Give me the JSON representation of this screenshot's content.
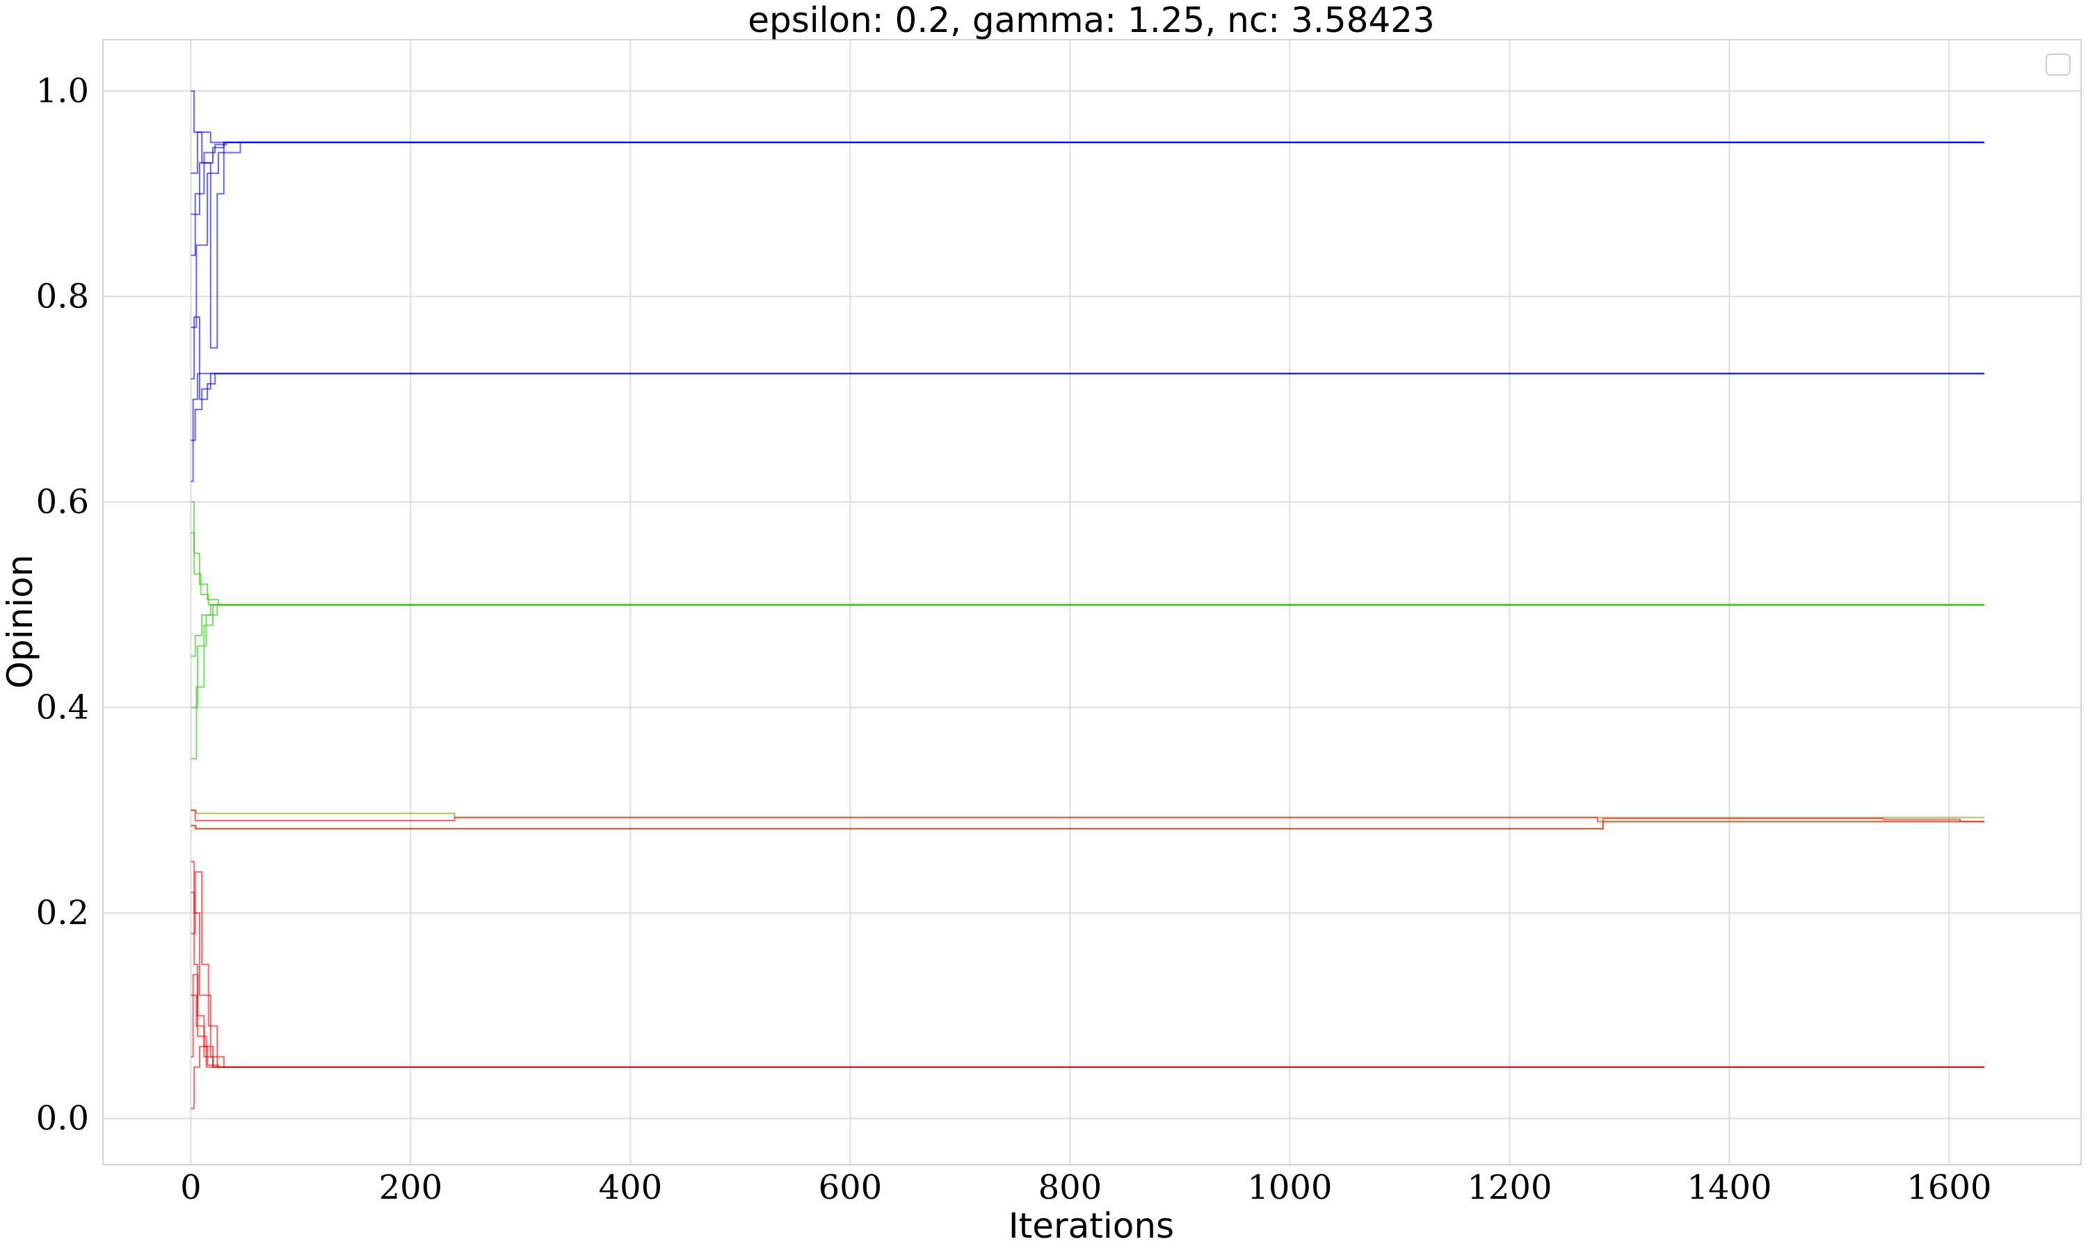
{
  "chart_data": {
    "type": "line",
    "title": "epsilon: 0.2, gamma: 1.25, nc: 3.58423",
    "xlabel": "Iterations",
    "ylabel": "Opinion",
    "xlim": [
      -80,
      1720
    ],
    "ylim": [
      -0.045,
      1.05
    ],
    "xticks": [
      0,
      200,
      400,
      600,
      800,
      1000,
      1200,
      1400,
      1600
    ],
    "xtick_labels": [
      "0",
      "200",
      "400",
      "600",
      "800",
      "1000",
      "1200",
      "1400",
      "1600"
    ],
    "yticks": [
      0.0,
      0.2,
      0.4,
      0.6,
      0.8,
      1.0
    ],
    "ytick_labels": [
      "0.0",
      "0.2",
      "0.4",
      "0.6",
      "0.8",
      "1.0"
    ],
    "grid": true,
    "legend": "upper right (empty)",
    "colors": {
      "blue": "#0000ff",
      "green": "#22cc00",
      "olive": "#7a9a00",
      "red": "#ff0000"
    },
    "series": [
      {
        "color": "blue",
        "x": [
          0,
          3,
          10,
          20,
          30,
          40,
          60,
          1632
        ],
        "y": [
          1.0,
          0.96,
          0.93,
          0.945,
          0.95,
          0.95,
          0.95,
          0.95
        ]
      },
      {
        "color": "blue",
        "x": [
          0,
          4,
          12,
          22,
          32,
          1632
        ],
        "y": [
          0.84,
          0.9,
          0.94,
          0.948,
          0.95,
          0.95
        ]
      },
      {
        "color": "blue",
        "x": [
          0,
          5,
          15,
          25,
          45,
          1632
        ],
        "y": [
          0.77,
          0.85,
          0.92,
          0.94,
          0.95,
          0.95
        ]
      },
      {
        "color": "blue",
        "x": [
          0,
          6,
          18,
          28,
          1632
        ],
        "y": [
          0.92,
          0.96,
          0.95,
          0.95,
          0.95
        ]
      },
      {
        "color": "blue",
        "x": [
          0,
          8,
          18,
          24,
          30,
          1632
        ],
        "y": [
          0.88,
          0.93,
          0.75,
          0.9,
          0.95,
          0.95
        ]
      },
      {
        "color": "blue",
        "x": [
          0,
          3,
          8,
          15,
          22,
          1632
        ],
        "y": [
          0.72,
          0.78,
          0.7,
          0.715,
          0.725,
          0.725
        ]
      },
      {
        "color": "blue",
        "x": [
          0,
          4,
          10,
          18,
          1632
        ],
        "y": [
          0.66,
          0.69,
          0.71,
          0.725,
          0.725
        ]
      },
      {
        "color": "blue",
        "x": [
          0,
          2,
          6,
          1632
        ],
        "y": [
          0.62,
          0.7,
          0.725,
          0.725
        ]
      },
      {
        "color": "green",
        "x": [
          0,
          3,
          8,
          15,
          25,
          40,
          1632
        ],
        "y": [
          0.6,
          0.55,
          0.52,
          0.505,
          0.5,
          0.5,
          0.5
        ]
      },
      {
        "color": "green",
        "x": [
          0,
          4,
          10,
          18,
          30,
          1632
        ],
        "y": [
          0.45,
          0.47,
          0.49,
          0.5,
          0.5,
          0.5
        ]
      },
      {
        "color": "green",
        "x": [
          0,
          5,
          12,
          20,
          1632
        ],
        "y": [
          0.35,
          0.42,
          0.48,
          0.5,
          0.5
        ]
      },
      {
        "color": "green",
        "x": [
          0,
          3,
          9,
          16,
          1632
        ],
        "y": [
          0.57,
          0.53,
          0.51,
          0.5,
          0.5
        ]
      },
      {
        "color": "green",
        "x": [
          0,
          6,
          14,
          24,
          1632
        ],
        "y": [
          0.4,
          0.46,
          0.49,
          0.5,
          0.5
        ]
      },
      {
        "color": "olive",
        "x": [
          0,
          5,
          220,
          240,
          1632
        ],
        "y": [
          0.3,
          0.297,
          0.297,
          0.293,
          0.293
        ]
      },
      {
        "color": "olive",
        "x": [
          0,
          5,
          1255,
          1285,
          1632
        ],
        "y": [
          0.285,
          0.282,
          0.282,
          0.289,
          0.289
        ]
      },
      {
        "color": "red",
        "x": [
          0,
          4,
          220,
          240,
          1260,
          1280,
          1632
        ],
        "y": [
          0.3,
          0.29,
          0.29,
          0.293,
          0.293,
          0.289,
          0.289
        ]
      },
      {
        "color": "red",
        "x": [
          0,
          4,
          1255,
          1285,
          1540,
          1610,
          1632
        ],
        "y": [
          0.285,
          0.282,
          0.282,
          0.292,
          0.291,
          0.289,
          0.289
        ]
      },
      {
        "color": "red",
        "x": [
          0,
          3,
          8,
          15,
          25,
          40,
          1632
        ],
        "y": [
          0.01,
          0.05,
          0.07,
          0.052,
          0.05,
          0.05,
          0.05
        ]
      },
      {
        "color": "red",
        "x": [
          0,
          3,
          6,
          12,
          20,
          1632
        ],
        "y": [
          0.22,
          0.15,
          0.1,
          0.06,
          0.05,
          0.05
        ]
      },
      {
        "color": "red",
        "x": [
          0,
          4,
          10,
          16,
          24,
          1632
        ],
        "y": [
          0.18,
          0.24,
          0.15,
          0.09,
          0.05,
          0.05
        ]
      },
      {
        "color": "red",
        "x": [
          0,
          5,
          12,
          20,
          1632
        ],
        "y": [
          0.12,
          0.09,
          0.07,
          0.05,
          0.05
        ]
      },
      {
        "color": "red",
        "x": [
          0,
          2,
          6,
          14,
          1632
        ],
        "y": [
          0.06,
          0.14,
          0.08,
          0.05,
          0.05
        ]
      },
      {
        "color": "red",
        "x": [
          0,
          3,
          8,
          18,
          30,
          1632
        ],
        "y": [
          0.25,
          0.2,
          0.12,
          0.06,
          0.05,
          0.05
        ]
      }
    ]
  }
}
